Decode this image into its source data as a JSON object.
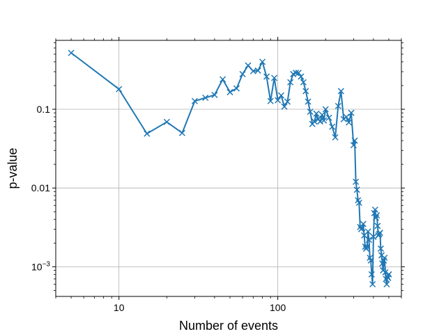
{
  "chart_data": {
    "type": "line",
    "title": "",
    "xlabel": "Number of events",
    "ylabel": "p-value",
    "xscale": "log",
    "yscale": "log",
    "xlim": [
      4,
      600
    ],
    "ylim": [
      0.00042,
      0.75
    ],
    "grid": true,
    "x_ticks": [
      {
        "value": 10,
        "label": "10"
      },
      {
        "value": 100,
        "label": "100"
      }
    ],
    "y_ticks": [
      {
        "value": 0.1,
        "label": "0.1"
      },
      {
        "value": 0.01,
        "label": "0.01"
      },
      {
        "value": 0.001,
        "label": "10",
        "sup": "−3"
      }
    ],
    "series": [
      {
        "name": "p-value",
        "color": "#1f77b4",
        "marker": "x",
        "x": [
          5,
          10,
          15,
          20,
          25,
          30,
          35,
          40,
          45,
          50,
          55,
          60,
          65,
          70,
          75,
          80,
          85,
          90,
          95,
          100,
          105,
          110,
          115,
          120,
          125,
          130,
          135,
          140,
          145,
          150,
          155,
          160,
          165,
          170,
          175,
          180,
          185,
          190,
          195,
          200,
          210,
          220,
          230,
          240,
          250,
          260,
          270,
          280,
          290,
          300,
          305,
          310,
          315,
          320,
          325,
          330,
          335,
          340,
          345,
          350,
          355,
          360,
          365,
          370,
          375,
          380,
          385,
          390,
          395,
          400,
          405,
          410,
          415,
          420,
          425,
          430,
          435,
          440,
          445,
          450,
          455,
          460,
          465,
          470,
          475,
          480,
          485,
          490,
          495,
          500
        ],
        "y": [
          0.52,
          0.18,
          0.049,
          0.069,
          0.05,
          0.127,
          0.14,
          0.152,
          0.24,
          0.165,
          0.184,
          0.28,
          0.36,
          0.305,
          0.31,
          0.4,
          0.26,
          0.127,
          0.25,
          0.13,
          0.15,
          0.108,
          0.125,
          0.22,
          0.28,
          0.29,
          0.29,
          0.26,
          0.22,
          0.17,
          0.125,
          0.093,
          0.065,
          0.07,
          0.088,
          0.075,
          0.07,
          0.085,
          0.072,
          0.1,
          0.078,
          0.06,
          0.044,
          0.11,
          0.17,
          0.075,
          0.08,
          0.068,
          0.09,
          0.035,
          0.04,
          0.012,
          0.0095,
          0.007,
          0.0065,
          0.0032,
          0.003,
          0.0031,
          0.0035,
          0.0025,
          0.0018,
          0.0017,
          0.0018,
          0.0028,
          0.0022,
          0.0013,
          0.0012,
          0.0008,
          0.0006,
          0.0024,
          0.0048,
          0.0053,
          0.0042,
          0.0045,
          0.0033,
          0.0025,
          0.0026,
          0.0027,
          0.0017,
          0.0014,
          0.0011,
          0.0009,
          0.0012,
          0.0013,
          0.00085,
          0.0007,
          0.0006,
          0.00075,
          0.00072,
          0.0008
        ]
      }
    ]
  }
}
